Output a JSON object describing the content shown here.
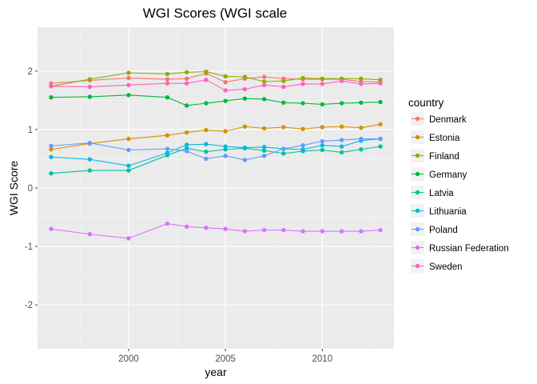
{
  "chart_data": {
    "type": "line",
    "title": "WGI Scores (WGI scale",
    "xlabel": "year",
    "ylabel": "WGI Score",
    "xlim": [
      1995.3,
      2013.7
    ],
    "ylim": [
      -2.75,
      2.75
    ],
    "x_ticks": [
      2000,
      2005,
      2010
    ],
    "y_ticks": [
      -2,
      -1,
      0,
      1,
      2
    ],
    "grid": true,
    "legend_title": "country",
    "legend_position": "right",
    "x": [
      1996,
      1998,
      2000,
      2002,
      2003,
      2004,
      2005,
      2006,
      2007,
      2008,
      2009,
      2010,
      2011,
      2012,
      2013
    ],
    "series": [
      {
        "name": "Denmark",
        "color": "#F8766D",
        "values": [
          1.79,
          1.84,
          1.88,
          1.86,
          1.87,
          1.96,
          1.81,
          1.87,
          1.9,
          1.87,
          1.86,
          1.86,
          1.86,
          1.82,
          1.81
        ]
      },
      {
        "name": "Estonia",
        "color": "#D39200",
        "values": [
          0.66,
          0.76,
          0.84,
          0.9,
          0.95,
          0.99,
          0.97,
          1.05,
          1.02,
          1.04,
          1.01,
          1.04,
          1.05,
          1.03,
          1.09
        ]
      },
      {
        "name": "Finland",
        "color": "#93AA00",
        "values": [
          1.74,
          1.86,
          1.97,
          1.95,
          1.98,
          1.99,
          1.91,
          1.9,
          1.82,
          1.83,
          1.88,
          1.87,
          1.87,
          1.87,
          1.85
        ]
      },
      {
        "name": "Germany",
        "color": "#00BA38",
        "values": [
          1.55,
          1.56,
          1.59,
          1.55,
          1.41,
          1.45,
          1.49,
          1.53,
          1.52,
          1.46,
          1.45,
          1.43,
          1.45,
          1.46,
          1.47
        ]
      },
      {
        "name": "Latvia",
        "color": "#00C19F",
        "values": [
          0.25,
          0.3,
          0.3,
          0.56,
          0.68,
          0.62,
          0.66,
          0.68,
          0.64,
          0.59,
          0.63,
          0.65,
          0.61,
          0.66,
          0.71
        ]
      },
      {
        "name": "Lithuania",
        "color": "#00B9E3",
        "values": [
          0.53,
          0.49,
          0.38,
          0.6,
          0.74,
          0.75,
          0.71,
          0.69,
          0.7,
          0.67,
          0.66,
          0.73,
          0.71,
          0.81,
          0.84
        ]
      },
      {
        "name": "Poland",
        "color": "#619CFF",
        "values": [
          0.72,
          0.77,
          0.65,
          0.67,
          0.63,
          0.5,
          0.55,
          0.48,
          0.55,
          0.67,
          0.73,
          0.8,
          0.82,
          0.84,
          0.84
        ]
      },
      {
        "name": "Russian Federation",
        "color": "#DB72FB",
        "values": [
          -0.7,
          -0.79,
          -0.86,
          -0.61,
          -0.66,
          -0.68,
          -0.7,
          -0.74,
          -0.72,
          -0.72,
          -0.74,
          -0.74,
          -0.74,
          -0.74,
          -0.72
        ]
      },
      {
        "name": "Sweden",
        "color": "#FF61C3",
        "values": [
          1.74,
          1.73,
          1.76,
          1.79,
          1.79,
          1.85,
          1.67,
          1.69,
          1.76,
          1.73,
          1.78,
          1.78,
          1.83,
          1.78,
          1.79
        ]
      }
    ]
  }
}
